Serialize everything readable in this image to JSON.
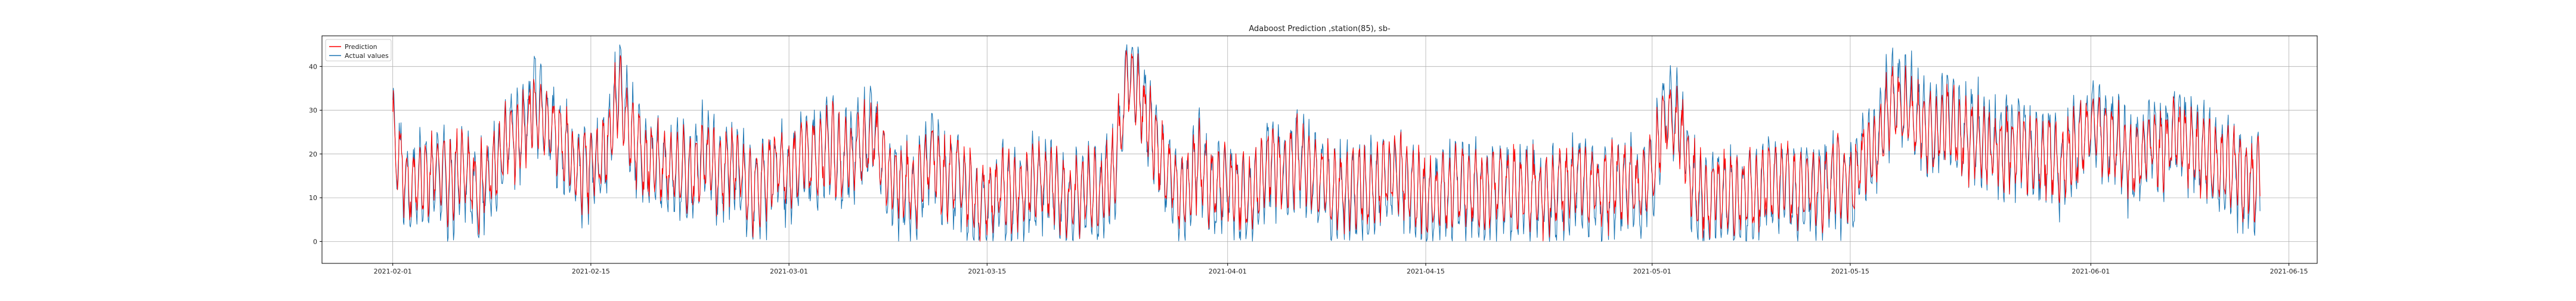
{
  "chart_data": {
    "type": "line",
    "title": "Adaboost Prediction ,station(85), sb-",
    "xlabel": "",
    "ylabel": "",
    "x_range": [
      "2021-01-27",
      "2021-06-17"
    ],
    "xlim": [
      "2021-01-27",
      "2021-06-17"
    ],
    "ylim": [
      -5,
      47
    ],
    "x_ticks": [
      "2021-02-01",
      "2021-02-15",
      "2021-03-01",
      "2021-03-15",
      "2021-04-01",
      "2021-04-15",
      "2021-05-01",
      "2021-05-15",
      "2021-06-01",
      "2021-06-15"
    ],
    "y_ticks": [
      0,
      10,
      20,
      30,
      40
    ],
    "grid": true,
    "legend_position": "upper-left",
    "sampling": "hourly",
    "series_colors": {
      "prediction": "#ff0000",
      "actual": "#1f77b4"
    },
    "series": [
      {
        "name": "Prediction",
        "color": "#ff0000",
        "x_start": "2021-02-01",
        "x_end": "2021-06-12",
        "daily_approx_values": [
          24,
          13,
          14,
          16,
          14,
          18,
          12,
          17,
          22,
          24,
          30,
          27,
          22,
          16,
          18,
          20,
          35,
          22,
          19,
          17,
          16,
          15,
          19,
          16,
          18,
          13,
          12,
          18,
          15,
          20,
          19,
          21,
          18,
          22,
          24,
          15,
          13,
          12,
          20,
          14,
          16,
          10,
          9,
          12,
          11,
          13,
          15,
          12,
          9,
          12,
          11,
          16,
          38,
          30,
          22,
          15,
          11,
          18,
          12,
          14,
          10,
          12,
          18,
          16,
          20,
          15,
          13,
          11,
          13,
          12,
          14,
          16,
          12,
          10,
          11,
          12,
          13,
          11,
          13,
          12,
          12,
          11,
          10,
          14,
          15,
          12,
          13,
          14,
          12,
          16,
          30,
          25,
          12,
          10,
          12,
          10,
          11,
          13,
          15,
          12,
          14,
          11,
          16,
          12,
          20,
          22,
          32,
          30,
          26,
          24,
          28,
          24,
          23,
          21,
          20,
          22,
          19,
          20,
          17,
          22,
          26,
          24,
          21,
          18,
          22,
          20,
          24,
          21,
          20,
          17,
          18,
          14
        ]
      },
      {
        "name": "Actual values",
        "color": "#1f77b4",
        "x_start": "2021-02-01",
        "x_end": "2021-06-12",
        "daily_approx_values": [
          25,
          12,
          13,
          15,
          12,
          17,
          10,
          16,
          23,
          26,
          33,
          28,
          21,
          15,
          17,
          19,
          38,
          22,
          18,
          16,
          15,
          14,
          20,
          15,
          17,
          12,
          11,
          17,
          14,
          21,
          19,
          22,
          18,
          23,
          26,
          14,
          12,
          10,
          21,
          13,
          15,
          8,
          7,
          11,
          10,
          12,
          14,
          11,
          8,
          11,
          10,
          15,
          41,
          31,
          23,
          14,
          10,
          19,
          11,
          13,
          8,
          11,
          19,
          15,
          21,
          14,
          12,
          9,
          12,
          11,
          13,
          15,
          11,
          9,
          10,
          11,
          12,
          10,
          12,
          11,
          11,
          10,
          9,
          13,
          14,
          11,
          12,
          13,
          11,
          15,
          32,
          27,
          11,
          9,
          11,
          9,
          10,
          12,
          14,
          11,
          13,
          10,
          15,
          11,
          21,
          23,
          34,
          32,
          27,
          25,
          30,
          25,
          24,
          22,
          21,
          23,
          19,
          21,
          16,
          23,
          27,
          25,
          22,
          17,
          23,
          21,
          25,
          22,
          21,
          16,
          17,
          13
        ]
      }
    ]
  }
}
